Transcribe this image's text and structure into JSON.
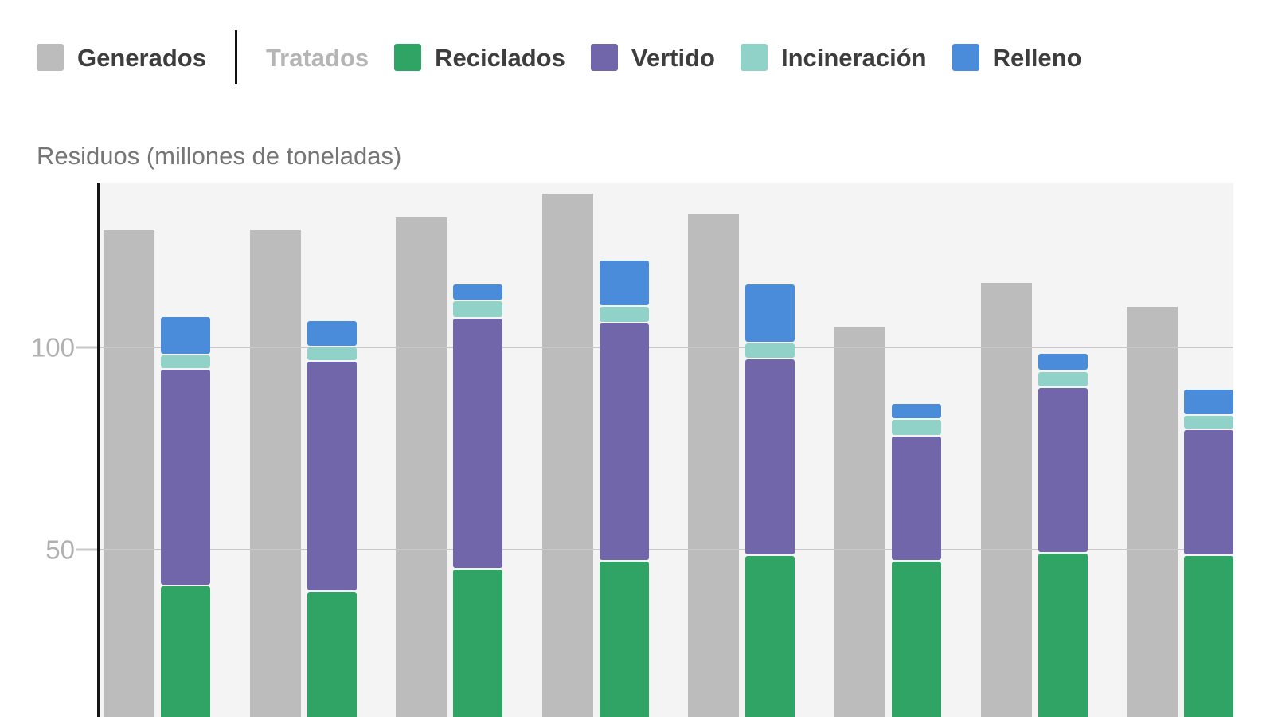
{
  "title": "Residuos (millones de toneladas)",
  "colors": {
    "generados": "#bcbcbc",
    "reciclados": "#2fa464",
    "vertido": "#7266ab",
    "incineracion": "#90d2c7",
    "relleno": "#4a8cd9",
    "plot_bg": "#f4f4f4",
    "gridline": "#c8c8c8",
    "axis": "#141414",
    "legend_text": "#3d3d3d",
    "muted_text": "#b5b5b5",
    "title_text": "#757575",
    "tick_text": "#b1b1b1",
    "divider": "#111111",
    "page_bg": "#ffffff"
  },
  "legend": {
    "divider_after_index": 0,
    "items": [
      {
        "label": "Generados",
        "color_key": "generados",
        "muted": false
      },
      {
        "label": "Tratados",
        "color_key": null,
        "muted": true
      },
      {
        "label": "Reciclados",
        "color_key": "reciclados",
        "muted": false
      },
      {
        "label": "Vertido",
        "color_key": "vertido",
        "muted": false
      },
      {
        "label": "Incineración",
        "color_key": "incineracion",
        "muted": false
      },
      {
        "label": "Relleno",
        "color_key": "relleno",
        "muted": false
      }
    ]
  },
  "y_axis": {
    "ticks": [
      50,
      100
    ],
    "tick_labels": [
      "50",
      "100"
    ]
  },
  "chart_data": {
    "type": "bar",
    "subtype": "grouped-background-plus-stacked",
    "title": "Residuos (millones de toneladas)",
    "ylabel": "Residuos (millones de toneladas)",
    "num_groups": 8,
    "x_tick_labels_visible": false,
    "grid": "horizontal",
    "gridlines_y": [
      50,
      100
    ],
    "y_visible_range": [
      9,
      140
    ],
    "zero_line_visible": false,
    "legend_position": "top",
    "stack_group_label": "Tratados",
    "series": [
      {
        "name": "Generados",
        "role": "background-bar",
        "color_key": "generados",
        "values": [
          129,
          129,
          132,
          138,
          133,
          105,
          116,
          110
        ]
      },
      {
        "name": "Reciclados",
        "role": "stack",
        "color_key": "reciclados",
        "values": [
          41,
          39.5,
          45,
          47,
          48.5,
          47,
          49,
          48.5
        ]
      },
      {
        "name": "Vertido",
        "role": "stack",
        "color_key": "vertido",
        "values": [
          53.5,
          57,
          62,
          59,
          48.5,
          31,
          41,
          31
        ]
      },
      {
        "name": "Incineración",
        "role": "stack",
        "color_key": "incineracion",
        "values": [
          3.5,
          3.5,
          4.5,
          4,
          4,
          4,
          4,
          3.5
        ]
      },
      {
        "name": "Relleno",
        "role": "stack",
        "color_key": "relleno",
        "values": [
          9.5,
          6.5,
          4,
          11.5,
          14.5,
          4,
          4.5,
          6.5
        ]
      }
    ],
    "stack_totals": [
      107.5,
      106.5,
      115.5,
      121.5,
      115.5,
      86,
      98.5,
      89.5
    ]
  }
}
